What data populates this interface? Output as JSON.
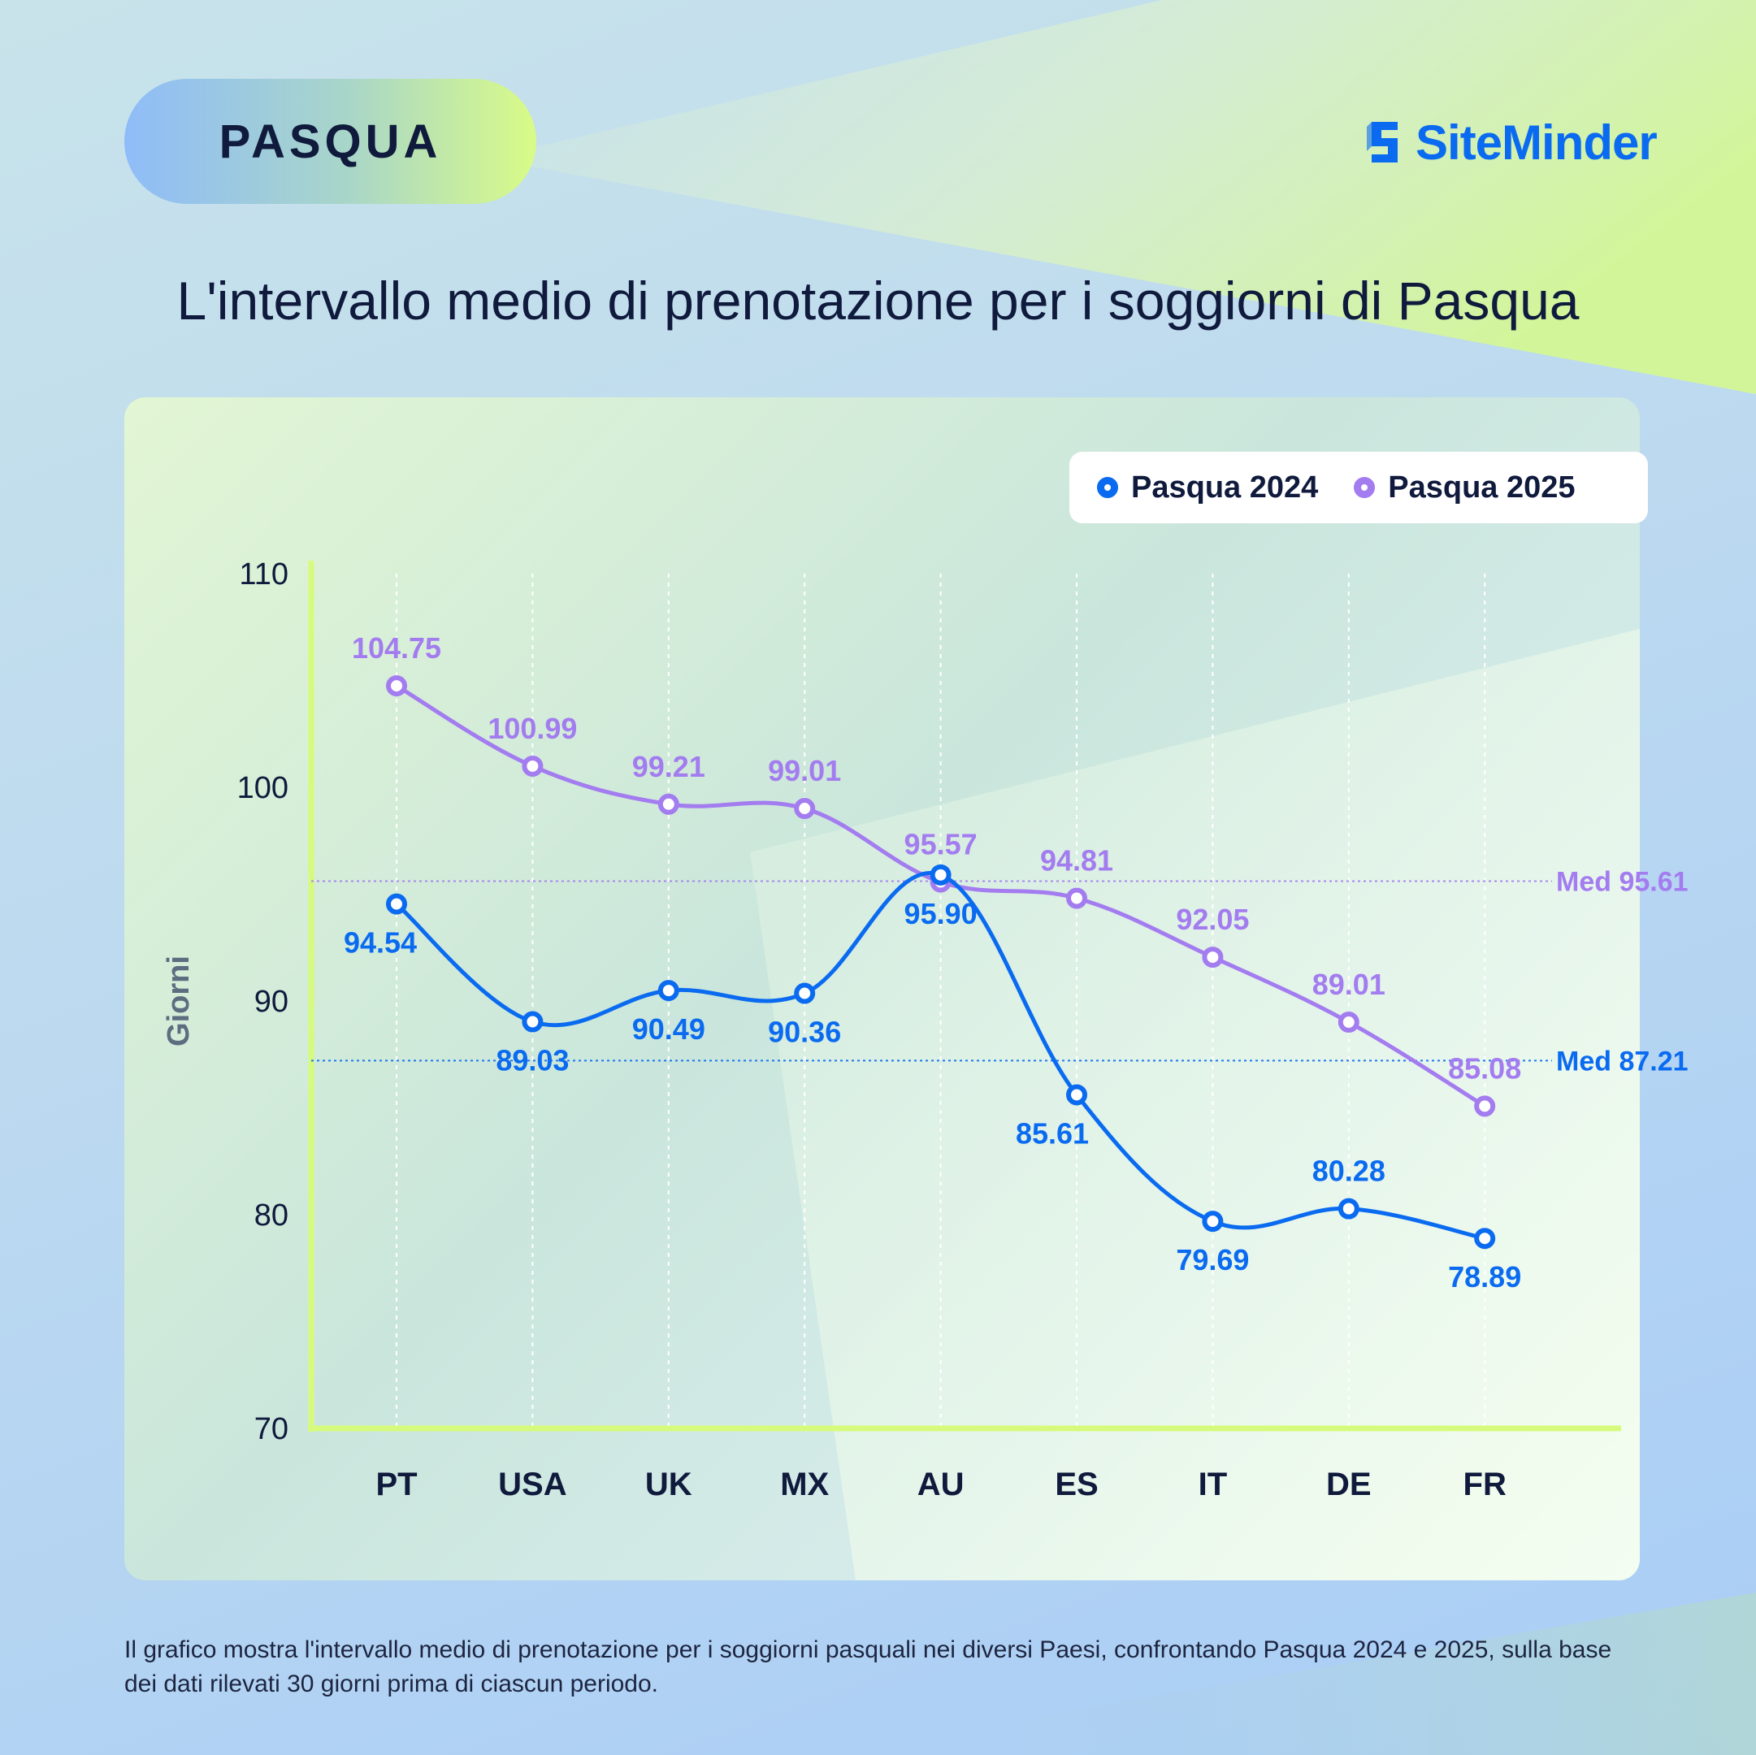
{
  "badge": {
    "label": "PASQUA"
  },
  "brand": {
    "name": "SiteMinder",
    "color": "#0a6bf0"
  },
  "title": "L'intervallo medio di prenotazione per i soggiorni di Pasqua",
  "legend": [
    {
      "name": "Pasqua 2024",
      "color": "#0a6bf0"
    },
    {
      "name": "Pasqua 2025",
      "color": "#a37cf0"
    }
  ],
  "chart_data": {
    "type": "line",
    "title": "L'intervallo medio di prenotazione per i soggiorni di Pasqua",
    "xlabel": "",
    "ylabel": "Giorni",
    "ylim": [
      70,
      110
    ],
    "yticks": [
      70,
      80,
      90,
      100,
      110
    ],
    "categories": [
      "PT",
      "USA",
      "UK",
      "MX",
      "AU",
      "ES",
      "IT",
      "DE",
      "FR"
    ],
    "series": [
      {
        "name": "Pasqua 2024",
        "color": "#0a6bf0",
        "values": [
          94.54,
          89.03,
          90.49,
          90.36,
          95.9,
          85.61,
          79.69,
          80.28,
          78.89
        ],
        "labels": [
          "94.54",
          "89.03",
          "90.49",
          "90.36",
          "95.90",
          "85.61",
          "79.69",
          "80.28",
          "78.89"
        ],
        "label_side": [
          "below",
          "below",
          "below",
          "below",
          "below",
          "below",
          "below",
          "above",
          "below"
        ],
        "median": {
          "value": 87.21,
          "label": "Med 87.21"
        }
      },
      {
        "name": "Pasqua 2025",
        "color": "#a37cf0",
        "values": [
          104.75,
          100.99,
          99.21,
          99.01,
          95.57,
          94.81,
          92.05,
          89.01,
          85.08
        ],
        "labels": [
          "104.75",
          "100.99",
          "99.21",
          "99.01",
          "95.57",
          "94.81",
          "92.05",
          "89.01",
          "85.08"
        ],
        "label_side": [
          "above",
          "above",
          "above",
          "above",
          "above",
          "above",
          "above",
          "above",
          "above"
        ],
        "median": {
          "value": 95.61,
          "label": "Med 95.61"
        }
      }
    ],
    "grid": {
      "vertical": true,
      "horizontal": false
    }
  },
  "footnote": "Il grafico mostra l'intervallo medio di prenotazione per i soggiorni pasquali nei diversi Paesi, confrontando Pasqua 2024 e 2025, sulla base dei dati rilevati 30 giorni prima di ciascun periodo."
}
